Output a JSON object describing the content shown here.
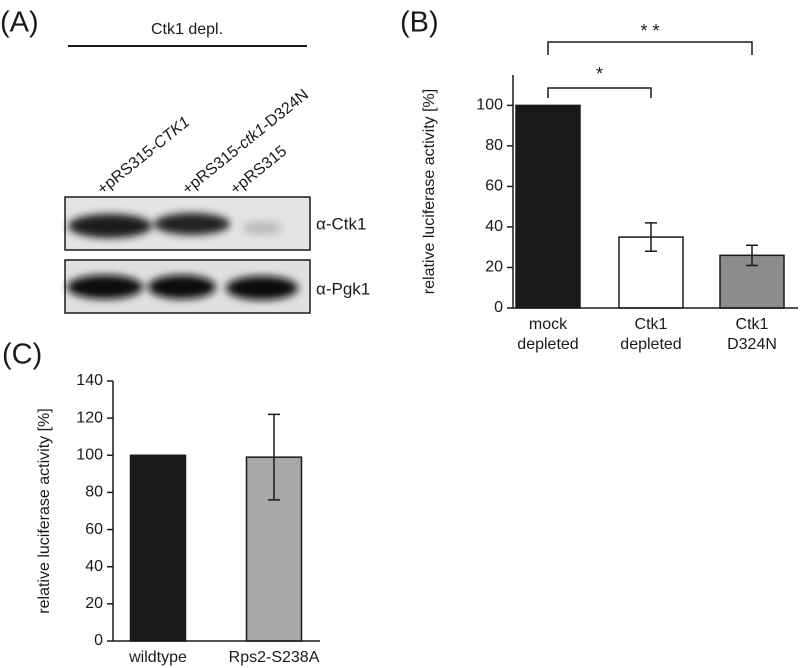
{
  "panel_a": {
    "panel_label": "(A)",
    "header": "Ctk1 depl.",
    "lanes": [
      [
        "+pRS315-",
        "CTK1"
      ],
      [
        "+pRS315-",
        "ctk1",
        "-D324N"
      ],
      [
        "+pRS315"
      ]
    ],
    "blots": [
      "α-Ctk1",
      "α-Pgk1"
    ]
  },
  "chart_data": [
    {
      "type": "bar",
      "panel_label": "(B)",
      "y_label": "relative luciferase activity [%]",
      "categories": [
        [
          "mock",
          "depleted"
        ],
        [
          "Ctk1",
          "depleted"
        ],
        [
          "Ctk1",
          "D324N"
        ]
      ],
      "values": [
        100,
        35,
        26
      ],
      "errors": [
        null,
        7,
        5
      ],
      "colors": [
        "#1a1a1a",
        "#ffffff",
        "#8c8c8c"
      ],
      "annotations": [
        "*",
        "* *"
      ],
      "ylim": [
        0,
        115
      ],
      "yticks": [
        0,
        20,
        40,
        60,
        80,
        100
      ]
    },
    {
      "type": "bar",
      "panel_label": "(C)",
      "y_label": "relative luciferase activity [%]",
      "categories": [
        [
          "wildtype"
        ],
        [
          "Rps2-S238A"
        ]
      ],
      "values": [
        100,
        99
      ],
      "errors": [
        null,
        23
      ],
      "colors": [
        "#1a1a1a",
        "#a8a8a8"
      ],
      "ylim": [
        0,
        140
      ],
      "yticks": [
        0,
        20,
        40,
        60,
        80,
        100,
        120,
        140
      ]
    }
  ]
}
